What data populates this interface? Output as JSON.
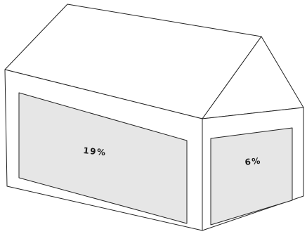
{
  "house": {
    "front_wall": {
      "value_label": "19%",
      "fill": "#e6e6e6"
    },
    "side_wall": {
      "value_label": "6%",
      "fill": "#e6e6e6"
    }
  },
  "colors": {
    "outline": "#222222",
    "wall": "#ffffff",
    "panel": "#e6e6e6"
  }
}
